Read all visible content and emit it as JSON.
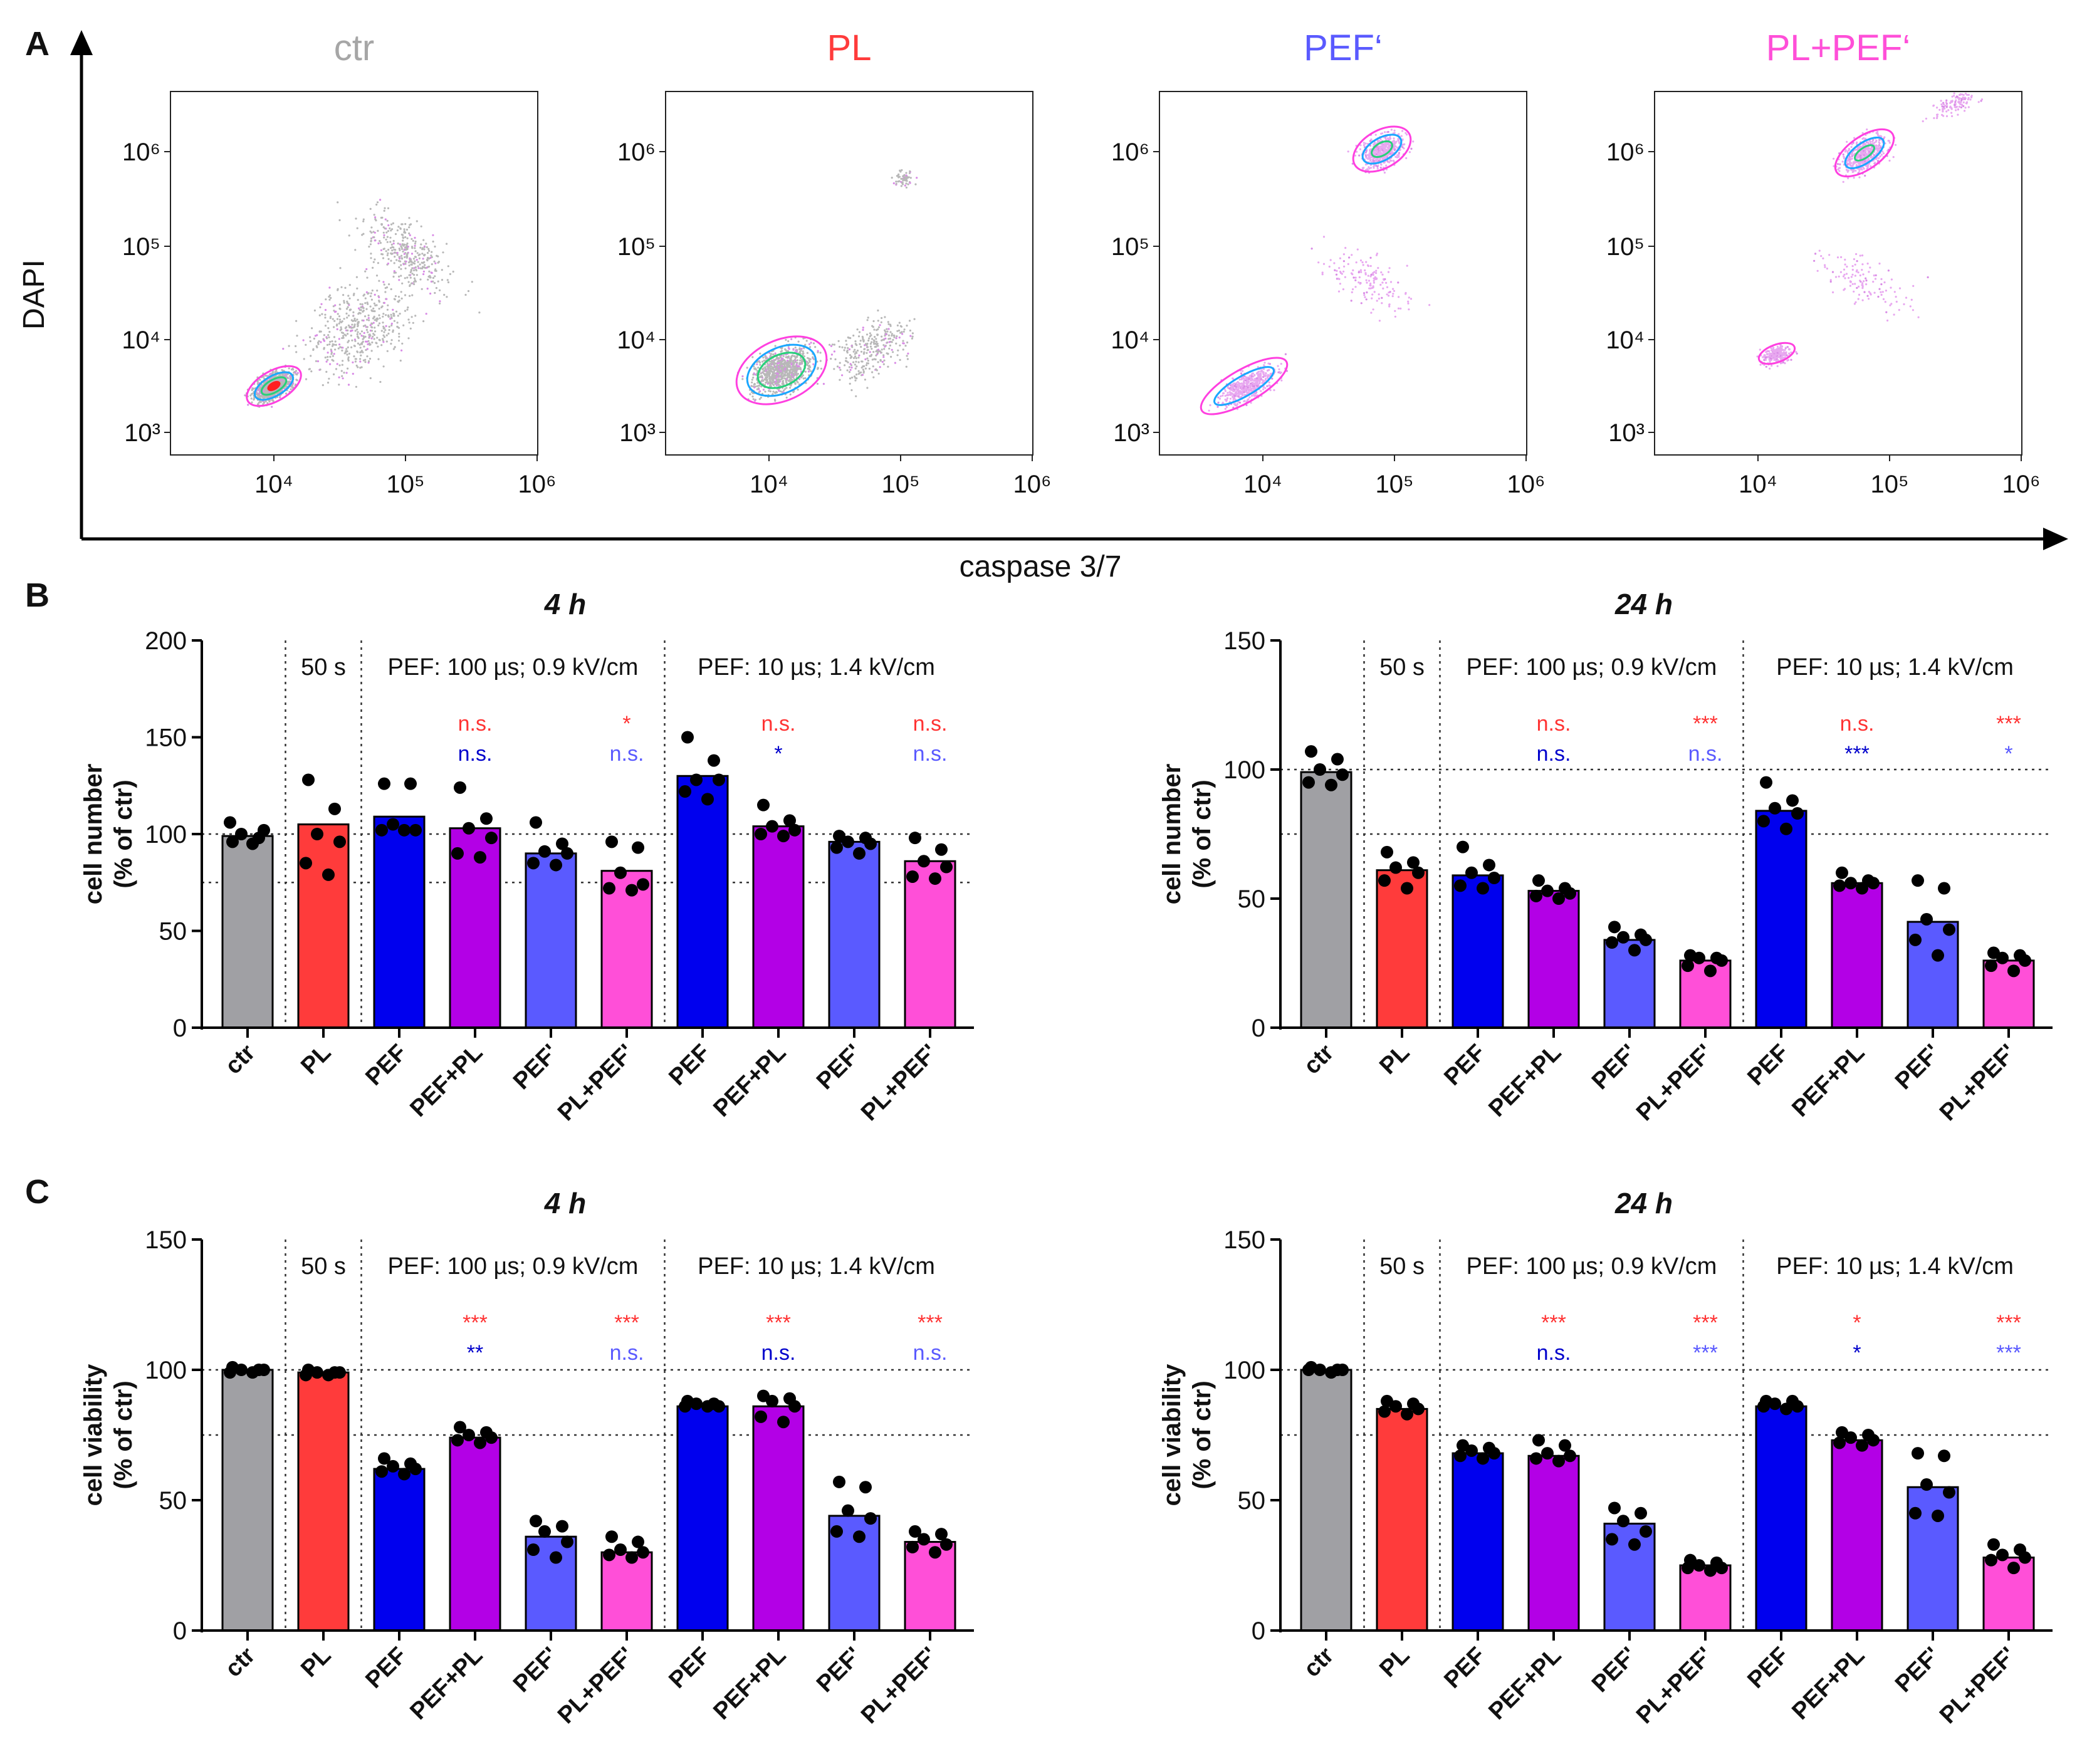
{
  "panel_a": {
    "letter": "A",
    "y_axis_label": "DAPI",
    "x_axis_label": "caspase 3/7",
    "y_tick_labels": [
      "10³",
      "10⁴",
      "10⁵",
      "10⁶"
    ],
    "x_tick_labels": [
      "10⁴",
      "10⁵",
      "10⁶"
    ],
    "plots": [
      {
        "title": "ctr",
        "color": "#a6a6a6"
      },
      {
        "title": "PL",
        "color": "#ff3b3b"
      },
      {
        "title": "PEF‘",
        "color": "#5a5aff"
      },
      {
        "title": "PL+PEF‘",
        "color": "#ff4fd8"
      }
    ]
  },
  "panel_b_letter": "B",
  "panel_c_letter": "C",
  "common": {
    "categories": [
      "ctr",
      "PL",
      "PEF",
      "PEF+PL",
      "PEF'",
      "PL+PEF'",
      "PEF",
      "PEF+PL",
      "PEF'",
      "PL+PEF'"
    ],
    "bar_colors": [
      "#a0a0a4",
      "#ff3b3b",
      "#0000ee",
      "#b300e6",
      "#5a5aff",
      "#ff4fd8",
      "#0000ee",
      "#b300e6",
      "#5a5aff",
      "#ff4fd8"
    ],
    "section_labels": [
      "50 s",
      "PEF: 100 µs; 0.9 kV/cm",
      "PEF: 10 µs; 1.4 kV/cm"
    ],
    "sig_red_color": "#ff3333",
    "sig_dark_blue_color": "#0000cc",
    "sig_light_blue_color": "#5a5aff"
  },
  "chart_data": [
    {
      "type": "bar",
      "id": "B-4h",
      "title": "4 h",
      "ylabel": "cell number",
      "ylabel2": "(% of ctr)",
      "ylim": [
        0,
        200
      ],
      "yticks": [
        "0",
        "50",
        "100",
        "150",
        "200"
      ],
      "reference_lines": [
        75,
        100
      ],
      "values": [
        99,
        105,
        109,
        103,
        90,
        81,
        130,
        104,
        96,
        86
      ],
      "points": [
        [
          96,
          98,
          100,
          102,
          106,
          95
        ],
        [
          128,
          113,
          100,
          96,
          85,
          79
        ],
        [
          126,
          126,
          105,
          102,
          102,
          102
        ],
        [
          124,
          108,
          103,
          98,
          90,
          88
        ],
        [
          106,
          95,
          91,
          90,
          85,
          84
        ],
        [
          96,
          93,
          80,
          74,
          72,
          71
        ],
        [
          150,
          138,
          128,
          128,
          122,
          118
        ],
        [
          115,
          107,
          104,
          102,
          100,
          99
        ],
        [
          99,
          98,
          96,
          95,
          93,
          90
        ],
        [
          98,
          92,
          86,
          83,
          78,
          77
        ]
      ],
      "sig_top": [
        "",
        "",
        "",
        "n.s.",
        "",
        "*",
        "",
        "n.s.",
        "",
        "n.s."
      ],
      "sig_bottom": [
        "",
        "",
        "",
        "n.s.",
        "",
        "n.s.",
        "",
        "*",
        "",
        "n.s."
      ]
    },
    {
      "type": "bar",
      "id": "B-24h",
      "title": "24 h",
      "ylabel": "cell number",
      "ylabel2": "(% of ctr)",
      "ylim": [
        0,
        150
      ],
      "yticks": [
        "0",
        "50",
        "100",
        "150"
      ],
      "reference_lines": [
        75,
        100
      ],
      "values": [
        99,
        61,
        59,
        53,
        34,
        26,
        84,
        56,
        41,
        26
      ],
      "points": [
        [
          107,
          104,
          100,
          98,
          95,
          94
        ],
        [
          68,
          64,
          62,
          60,
          57,
          54
        ],
        [
          70,
          63,
          60,
          58,
          55,
          54
        ],
        [
          57,
          54,
          53,
          52,
          51,
          50
        ],
        [
          39,
          36,
          35,
          34,
          33,
          30
        ],
        [
          28,
          27,
          27,
          26,
          24,
          22
        ],
        [
          95,
          88,
          85,
          83,
          80,
          77
        ],
        [
          60,
          57,
          56,
          56,
          55,
          54
        ],
        [
          57,
          54,
          42,
          38,
          34,
          28
        ],
        [
          29,
          28,
          27,
          26,
          24,
          22
        ]
      ],
      "sig_top": [
        "",
        "",
        "",
        "n.s.",
        "",
        "***",
        "",
        "n.s.",
        "",
        "***"
      ],
      "sig_bottom": [
        "",
        "",
        "",
        "n.s.",
        "",
        "n.s.",
        "",
        "***",
        "",
        "*"
      ]
    },
    {
      "type": "bar",
      "id": "C-4h",
      "title": "4 h",
      "ylabel": "cell viability",
      "ylabel2": "(% of ctr)",
      "ylim": [
        0,
        150
      ],
      "yticks": [
        "0",
        "50",
        "100",
        "150"
      ],
      "reference_lines": [
        75,
        100
      ],
      "values": [
        100,
        99,
        62,
        74,
        36,
        30,
        86,
        86,
        44,
        34
      ],
      "points": [
        [
          101,
          100,
          100,
          100,
          99,
          99
        ],
        [
          100,
          99,
          99,
          99,
          98,
          98
        ],
        [
          66,
          64,
          63,
          62,
          61,
          60
        ],
        [
          78,
          76,
          75,
          74,
          73,
          72
        ],
        [
          42,
          40,
          38,
          34,
          31,
          28
        ],
        [
          36,
          34,
          31,
          30,
          29,
          28
        ],
        [
          88,
          87,
          87,
          86,
          86,
          86
        ],
        [
          90,
          89,
          88,
          86,
          82,
          80
        ],
        [
          57,
          55,
          46,
          43,
          38,
          36
        ],
        [
          38,
          37,
          35,
          33,
          32,
          30
        ]
      ],
      "sig_top": [
        "",
        "",
        "",
        "***",
        "",
        "***",
        "",
        "***",
        "",
        "***"
      ],
      "sig_bottom": [
        "",
        "",
        "",
        "**",
        "",
        "n.s.",
        "",
        "n.s.",
        "",
        "n.s."
      ]
    },
    {
      "type": "bar",
      "id": "C-24h",
      "title": "24 h",
      "ylabel": "cell viability",
      "ylabel2": "(% of ctr)",
      "ylim": [
        0,
        150
      ],
      "yticks": [
        "0",
        "50",
        "100",
        "150"
      ],
      "reference_lines": [
        75,
        100
      ],
      "values": [
        100,
        85,
        68,
        67,
        41,
        25,
        86,
        73,
        55,
        28
      ],
      "points": [
        [
          101,
          100,
          100,
          100,
          100,
          99
        ],
        [
          88,
          87,
          86,
          85,
          84,
          83
        ],
        [
          71,
          70,
          69,
          68,
          67,
          66
        ],
        [
          73,
          71,
          68,
          67,
          66,
          65
        ],
        [
          47,
          45,
          42,
          38,
          35,
          33
        ],
        [
          27,
          26,
          25,
          24,
          24,
          23
        ],
        [
          88,
          88,
          87,
          86,
          86,
          85
        ],
        [
          76,
          75,
          74,
          73,
          72,
          71
        ],
        [
          68,
          67,
          56,
          53,
          45,
          44
        ],
        [
          33,
          31,
          29,
          28,
          27,
          24
        ]
      ],
      "sig_top": [
        "",
        "",
        "",
        "***",
        "",
        "***",
        "",
        "*",
        "",
        "***"
      ],
      "sig_bottom": [
        "",
        "",
        "",
        "n.s.",
        "",
        "***",
        "",
        "*",
        "",
        "***"
      ]
    }
  ]
}
